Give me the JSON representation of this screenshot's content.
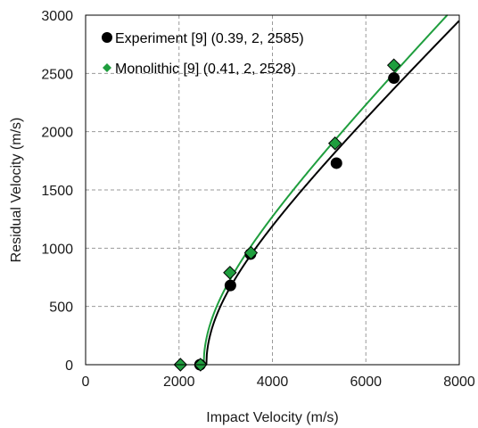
{
  "chart_data": {
    "type": "scatter",
    "xlabel": "Impact Velocity (m/s)",
    "ylabel": "Residual Velocity (m/s)",
    "xlim": [
      0,
      8000
    ],
    "ylim": [
      0,
      3000
    ],
    "xticks": [
      0,
      2000,
      4000,
      6000,
      8000
    ],
    "yticks": [
      0,
      500,
      1000,
      1500,
      2000,
      2500,
      3000
    ],
    "xtick_labels": [
      "0",
      "2000",
      "4000",
      "6000",
      "8000"
    ],
    "ytick_labels": [
      "0",
      "500",
      "1000",
      "1500",
      "2000",
      "2500",
      "3000"
    ],
    "grid": true,
    "legend_position": "top-left",
    "series": [
      {
        "name": "Experiment [9] (0.39, 2, 2585)",
        "marker": "circle",
        "color": "#000000",
        "points": [
          [
            2450,
            0
          ],
          [
            3100,
            680
          ],
          [
            3530,
            950
          ],
          [
            5370,
            1730
          ],
          [
            6600,
            2460
          ]
        ],
        "fit": {
          "a": 0.39,
          "p": 2,
          "vbl": 2585,
          "color": "#000000"
        }
      },
      {
        "name": "Monolithic [9] (0.41, 2, 2528)",
        "marker": "diamond",
        "color": "#1f9e3e",
        "points": [
          [
            2030,
            0
          ],
          [
            2460,
            0
          ],
          [
            3090,
            790
          ],
          [
            3540,
            960
          ],
          [
            5340,
            1900
          ],
          [
            6600,
            2570
          ]
        ],
        "fit": {
          "a": 0.41,
          "p": 2,
          "vbl": 2528,
          "color": "#1f9e3e"
        }
      }
    ]
  }
}
